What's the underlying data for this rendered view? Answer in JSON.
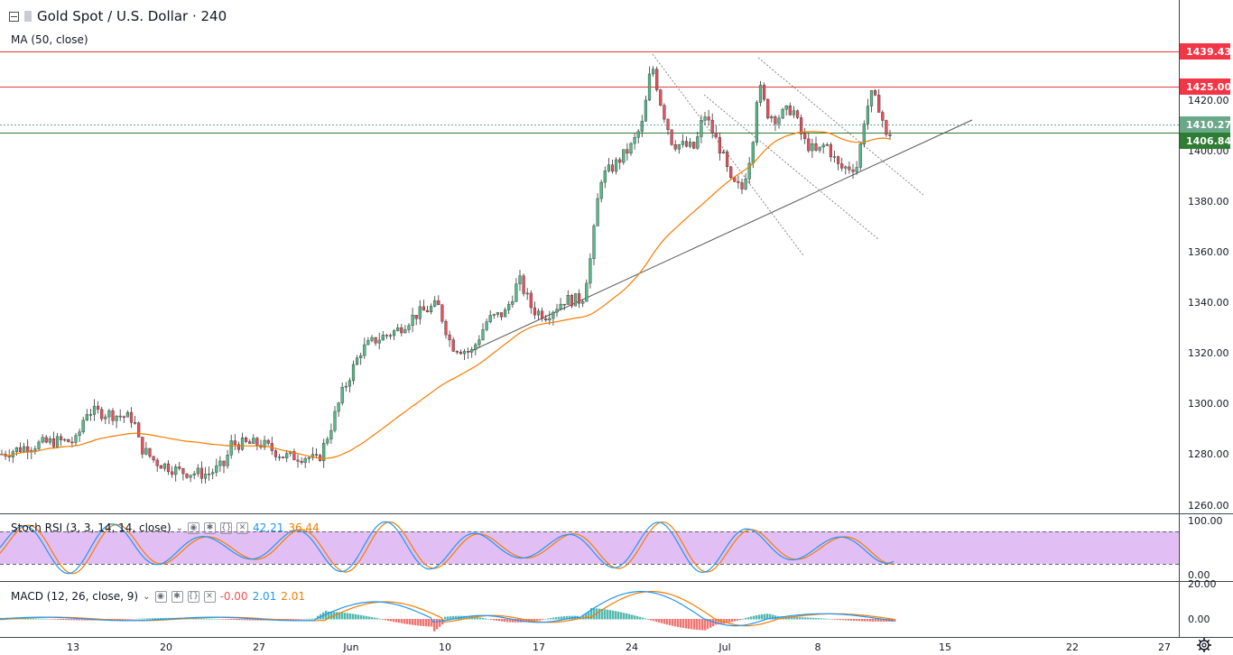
{
  "header": {
    "symbol_title": "Gold Spot / U.S. Dollar · 240",
    "ma_legend": "MA (50, close)"
  },
  "price_axis": {
    "labels": [
      "1420.00",
      "1400.00",
      "1380.00",
      "1360.00",
      "1340.00",
      "1320.00",
      "1300.00",
      "1280.00",
      "1260.00"
    ],
    "tags": [
      {
        "label": "1439.43",
        "color": "#f23645"
      },
      {
        "label": "1425.00",
        "color": "#f23645"
      },
      {
        "label": "1410.27",
        "color": "#6aa88a"
      },
      {
        "label": "1406.84",
        "color": "#2e7d32"
      }
    ]
  },
  "stoch_rsi": {
    "title": "Stoch RSI (3, 3, 14, 14, close)",
    "k_value": "42.21",
    "d_value": "36.44",
    "axis_labels": [
      "100.00",
      "0.00"
    ],
    "colors": {
      "k": "#2196f3",
      "d": "#f57c00",
      "band": "#e1bff5"
    }
  },
  "macd": {
    "title": "MACD (12, 26, close, 9)",
    "hist_value": "-0.00",
    "macd_value": "2.01",
    "signal_value": "2.01",
    "axis_labels": [
      "20.00",
      "0.00"
    ],
    "colors": {
      "macd": "#2196f3",
      "signal": "#f57c00",
      "hist_pos": "#26a69a",
      "hist_neg": "#ef5350"
    }
  },
  "time_axis": {
    "labels": [
      "13",
      "20",
      "27",
      "Jun",
      "10",
      "17",
      "24",
      "Jul",
      "8",
      "15",
      "22",
      "27"
    ]
  },
  "icons": [
    "collapse-icon",
    "flag-icon",
    "settings-gear-icon"
  ],
  "colors": {
    "up": "#53b987",
    "down": "#eb4d5c",
    "ma": "#f57c00",
    "resistance": "#e53935",
    "support": "#2e7d32"
  }
}
